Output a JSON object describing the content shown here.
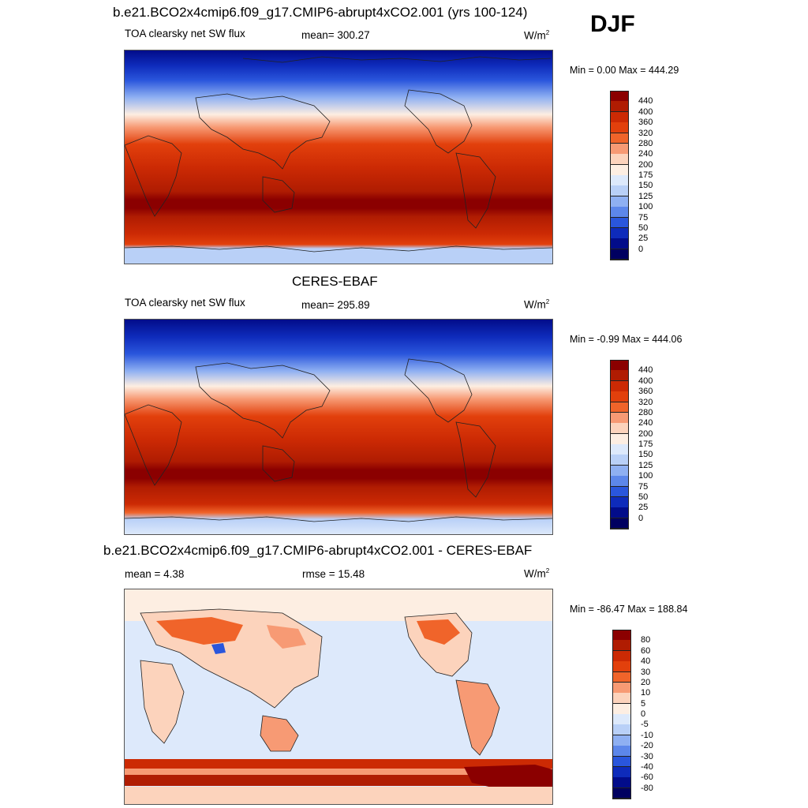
{
  "season": "DJF",
  "panels": [
    {
      "title": "b.e21.BCO2x4cmip6.f09_g17.CMIP6-abrupt4xCO2.001 (yrs 100-124)",
      "left_label": "TOA clearsky net SW flux",
      "center_label": "mean= 300.27",
      "unit_base": "W/m",
      "unit_exp": "2",
      "minmax": "Min =   0.00 Max = 444.29"
    },
    {
      "title": "CERES-EBAF",
      "left_label": "TOA clearsky net SW flux",
      "center_label": "mean= 295.89",
      "unit_base": "W/m",
      "unit_exp": "2",
      "minmax": "Min =  -0.99 Max = 444.06"
    },
    {
      "title": "b.e21.BCO2x4cmip6.f09_g17.CMIP6-abrupt4xCO2.001 - CERES-EBAF",
      "left_label": "mean =   4.38",
      "center_label": "rmse =  15.48",
      "unit_base": "W/m",
      "unit_exp": "2",
      "minmax": "Min = -86.47 Max = 188.84"
    }
  ],
  "colorbars": {
    "absolute": {
      "labels": [
        "440",
        "400",
        "360",
        "320",
        "280",
        "240",
        "200",
        "175",
        "150",
        "125",
        "100",
        "75",
        "50",
        "25",
        "0"
      ],
      "colors": [
        "#8b0000",
        "#b01c02",
        "#cc2a04",
        "#e2400c",
        "#f0642a",
        "#f79a74",
        "#fcd3bc",
        "#fdeee2",
        "#dde9fb",
        "#b9d0f7",
        "#8fb0f2",
        "#5d87ea",
        "#2a56dc",
        "#0e2bbb",
        "#020c8a",
        "#000060"
      ]
    },
    "difference": {
      "labels": [
        "80",
        "60",
        "40",
        "30",
        "20",
        "10",
        "5",
        "0",
        "-5",
        "-10",
        "-20",
        "-30",
        "-40",
        "-60",
        "-80"
      ],
      "colors": [
        "#8b0000",
        "#b01c02",
        "#cc2a04",
        "#e2400c",
        "#f0642a",
        "#f79a74",
        "#fcd3bc",
        "#fdeee2",
        "#dde9fb",
        "#b9d0f7",
        "#8fb0f2",
        "#5d87ea",
        "#2a56dc",
        "#0e2bbb",
        "#020c8a",
        "#000060"
      ]
    }
  },
  "legend_colors": {
    "land_outline": "#222222"
  }
}
